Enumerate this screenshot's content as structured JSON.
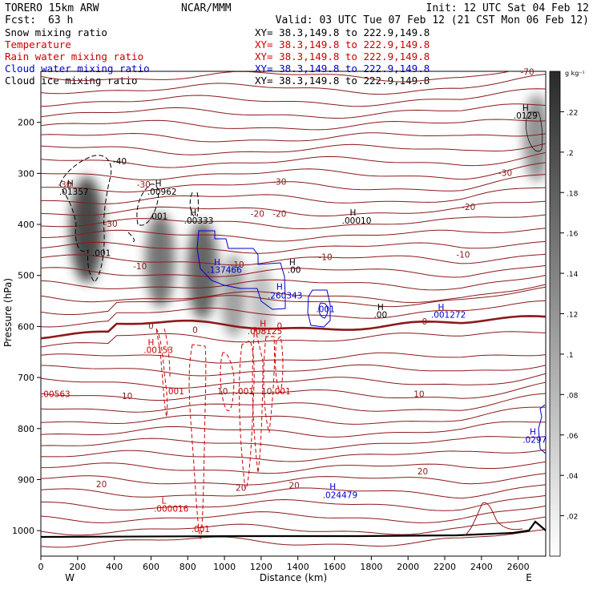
{
  "header": {
    "model": "TORERO  15km ARW",
    "producer": "NCAR/MMM",
    "init": "Init: 12 UTC Sat 04 Feb 12",
    "fcst_label": "Fcst:",
    "fcst_value": "63 h",
    "valid": "Valid: 03 UTC Tue 07 Feb 12 (21 CST Mon 06 Feb 12)",
    "fields": [
      {
        "label": "Snow mixing ratio",
        "color": "#000000",
        "xy": "XY=  38.3,149.8 to 222.9,149.8"
      },
      {
        "label": "Temperature",
        "color": "#cc0000",
        "xy": "XY=  38.3,149.8 to 222.9,149.8"
      },
      {
        "label": "Rain water mixing ratio",
        "color": "#cc0000",
        "xy": "XY=  38.3,149.8 to 222.9,149.8"
      },
      {
        "label": "Cloud water mixing ratio",
        "color": "#0000cc",
        "xy": "XY=  38.3,149.8 to 222.9,149.8"
      },
      {
        "label": "Cloud ice mixing ratio",
        "color": "#000000",
        "xy": "XY=  38.3,149.8 to 222.9,149.8"
      }
    ]
  },
  "colorbar": {
    "unit": "g kg⁻¹",
    "ticks": [
      ".02",
      ".04",
      ".06",
      ".08",
      ".1",
      ".12",
      ".14",
      ".16",
      ".18",
      ".2",
      ".22"
    ]
  },
  "chart_data": {
    "type": "contour",
    "xlabel": "Distance (km)",
    "ylabel": "Pressure (hPa)",
    "xlim": [
      0,
      2750
    ],
    "ylim": [
      1050,
      100
    ],
    "x_ticks": [
      "0",
      "200",
      "400",
      "600",
      "800",
      "1000",
      "1200",
      "1400",
      "1600",
      "1800",
      "2000",
      "2200",
      "2400",
      "2600"
    ],
    "x_tick_values": [
      0,
      200,
      400,
      600,
      800,
      1000,
      1200,
      1400,
      1600,
      1800,
      2000,
      2200,
      2400,
      2600
    ],
    "y_ticks": [
      "200",
      "300",
      "400",
      "500",
      "600",
      "700",
      "800",
      "900",
      "1000"
    ],
    "y_tick_values": [
      200,
      300,
      400,
      500,
      600,
      700,
      800,
      900,
      1000
    ],
    "endpoints": {
      "left": "W",
      "right": "E"
    },
    "snow_maxima": [
      {
        "x": 250,
        "p": 410,
        "peak": 0.22
      },
      {
        "x": 650,
        "p": 470,
        "peak": 0.16
      },
      {
        "x": 880,
        "p": 490,
        "peak": 0.18
      },
      {
        "x": 1050,
        "p": 540,
        "peak": 0.1
      },
      {
        "x": 1200,
        "p": 550,
        "peak": 0.06
      },
      {
        "x": 2700,
        "p": 230,
        "peak": 0.12
      }
    ],
    "temperature_contours": [
      {
        "label": "-70",
        "p": 130
      },
      {
        "label": "-40",
        "p": 180
      },
      {
        "label": "-30",
        "p": 270
      },
      {
        "label": "-20",
        "p": 360
      },
      {
        "label": "-10",
        "p": 460
      },
      {
        "label": "0",
        "p": 600
      },
      {
        "label": "10",
        "p": 740
      },
      {
        "label": "20",
        "p": 920
      }
    ],
    "annotations": [
      {
        "text": "-70",
        "x": 2650,
        "p": 107,
        "color": "#8b1a1a"
      },
      {
        "text": "H",
        "x": 2640,
        "p": 178,
        "color": "#000000"
      },
      {
        "text": ".0129",
        "x": 2640,
        "p": 193,
        "color": "#000000"
      },
      {
        "text": "-30",
        "x": 2530,
        "p": 305,
        "color": "#8b1a1a"
      },
      {
        "text": "-20",
        "x": 2330,
        "p": 372,
        "color": "#8b1a1a"
      },
      {
        "text": "-10",
        "x": 2300,
        "p": 465,
        "color": "#8b1a1a"
      },
      {
        "text": "-40",
        "x": 430,
        "p": 282,
        "color": "#000000"
      },
      {
        "text": "-30",
        "x": 130,
        "p": 328,
        "color": "#8b1a1a"
      },
      {
        "text": "-30",
        "x": 560,
        "p": 328,
        "color": "#8b1a1a"
      },
      {
        "text": "-30",
        "x": 1300,
        "p": 322,
        "color": "#8b1a1a"
      },
      {
        "text": "-30",
        "x": 380,
        "p": 405,
        "color": "#8b1a1a"
      },
      {
        "text": "-20",
        "x": 1180,
        "p": 385,
        "color": "#8b1a1a"
      },
      {
        "text": "-20",
        "x": 1300,
        "p": 385,
        "color": "#8b1a1a"
      },
      {
        "text": "-10",
        "x": 540,
        "p": 488,
        "color": "#8b1a1a"
      },
      {
        "text": "-10",
        "x": 1070,
        "p": 485,
        "color": "#8b1a1a"
      },
      {
        "text": "-10",
        "x": 1550,
        "p": 470,
        "color": "#8b1a1a"
      },
      {
        "text": "H",
        "x": 160,
        "p": 325,
        "color": "#000000"
      },
      {
        "text": ".01357",
        "x": 180,
        "p": 342,
        "color": "#000000"
      },
      {
        "text": ".001",
        "x": 330,
        "p": 462,
        "color": "#000000"
      },
      {
        "text": "H",
        "x": 640,
        "p": 325,
        "color": "#000000"
      },
      {
        "text": ".00962",
        "x": 660,
        "p": 342,
        "color": "#000000"
      },
      {
        "text": ".001",
        "x": 640,
        "p": 390,
        "color": "#000000"
      },
      {
        "text": "H",
        "x": 830,
        "p": 383,
        "color": "#000000"
      },
      {
        "text": ".00333",
        "x": 860,
        "p": 398,
        "color": "#000000"
      },
      {
        "text": "H",
        "x": 1700,
        "p": 383,
        "color": "#000000"
      },
      {
        "text": ".00010",
        "x": 1720,
        "p": 398,
        "color": "#000000"
      },
      {
        "text": "H",
        "x": 960,
        "p": 480,
        "color": "#0000cc"
      },
      {
        "text": ".137466",
        "x": 1000,
        "p": 495,
        "color": "#0000cc"
      },
      {
        "text": "H",
        "x": 1370,
        "p": 480,
        "color": "#000000"
      },
      {
        "text": ".00",
        "x": 1380,
        "p": 495,
        "color": "#000000"
      },
      {
        "text": "H",
        "x": 1300,
        "p": 528,
        "color": "#0000cc"
      },
      {
        "text": ".260343",
        "x": 1330,
        "p": 545,
        "color": "#0000cc"
      },
      {
        "text": ".001",
        "x": 1550,
        "p": 572,
        "color": "#0000cc"
      },
      {
        "text": "H",
        "x": 1850,
        "p": 568,
        "color": "#000000"
      },
      {
        "text": ".00",
        "x": 1850,
        "p": 583,
        "color": "#000000"
      },
      {
        "text": "H",
        "x": 2180,
        "p": 568,
        "color": "#0000cc"
      },
      {
        "text": ".001272",
        "x": 2220,
        "p": 583,
        "color": "#0000cc"
      },
      {
        "text": "0",
        "x": 600,
        "p": 605,
        "color": "#8b1a1a"
      },
      {
        "text": "0",
        "x": 840,
        "p": 613,
        "color": "#8b1a1a"
      },
      {
        "text": "0",
        "x": 1300,
        "p": 605,
        "color": "#8b1a1a"
      },
      {
        "text": "0",
        "x": 2090,
        "p": 596,
        "color": "#8b1a1a"
      },
      {
        "text": "H",
        "x": 1210,
        "p": 600,
        "color": "#cc0000"
      },
      {
        "text": ".008125",
        "x": 1220,
        "p": 615,
        "color": "#cc0000"
      },
      {
        "text": "H",
        "x": 600,
        "p": 637,
        "color": "#cc0000"
      },
      {
        "text": ".00153",
        "x": 640,
        "p": 652,
        "color": "#cc0000"
      },
      {
        "text": ".00563",
        "x": 80,
        "p": 738,
        "color": "#cc0000"
      },
      {
        "text": ".001",
        "x": 730,
        "p": 733,
        "color": "#cc0000"
      },
      {
        "text": "10",
        "x": 470,
        "p": 742,
        "color": "#8b1a1a"
      },
      {
        "text": "10",
        "x": 990,
        "p": 733,
        "color": "#8b1a1a"
      },
      {
        "text": ".001",
        "x": 1110,
        "p": 733,
        "color": "#cc0000"
      },
      {
        "text": "10",
        "x": 1230,
        "p": 733,
        "color": "#8b1a1a"
      },
      {
        "text": ".001",
        "x": 1310,
        "p": 733,
        "color": "#cc0000"
      },
      {
        "text": "10",
        "x": 2060,
        "p": 738,
        "color": "#8b1a1a"
      },
      {
        "text": "H",
        "x": 2680,
        "p": 812,
        "color": "#0000cc"
      },
      {
        "text": ".0297",
        "x": 2690,
        "p": 828,
        "color": "#0000cc"
      },
      {
        "text": "20",
        "x": 330,
        "p": 915,
        "color": "#8b1a1a"
      },
      {
        "text": "20",
        "x": 1090,
        "p": 922,
        "color": "#8b1a1a"
      },
      {
        "text": "20",
        "x": 1380,
        "p": 917,
        "color": "#8b1a1a"
      },
      {
        "text": "20",
        "x": 2080,
        "p": 890,
        "color": "#8b1a1a"
      },
      {
        "text": "H",
        "x": 1590,
        "p": 920,
        "color": "#0000cc"
      },
      {
        "text": ".024479",
        "x": 1630,
        "p": 936,
        "color": "#0000cc"
      },
      {
        "text": "L",
        "x": 670,
        "p": 947,
        "color": "#cc0000"
      },
      {
        "text": ".000016",
        "x": 710,
        "p": 963,
        "color": "#cc0000"
      },
      {
        "text": ".001",
        "x": 870,
        "p": 1003,
        "color": "#cc0000"
      }
    ]
  }
}
